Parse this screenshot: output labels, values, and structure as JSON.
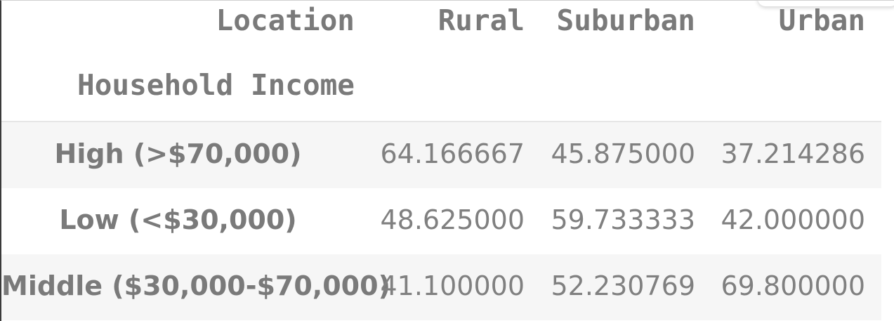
{
  "table": {
    "columns_name": "Location",
    "index_name": "Household Income",
    "columns": [
      "Rural",
      "Suburban",
      "Urban"
    ],
    "rows": [
      {
        "label": "High (>$70,000)",
        "values": [
          "64.166667",
          "45.875000",
          "37.214286"
        ]
      },
      {
        "label": "Low (<$30,000)",
        "values": [
          "48.625000",
          "59.733333",
          "42.000000"
        ]
      },
      {
        "label": "Middle ($30,000-$70,000)",
        "values": [
          "41.100000",
          "52.230769",
          "69.800000"
        ]
      }
    ]
  }
}
